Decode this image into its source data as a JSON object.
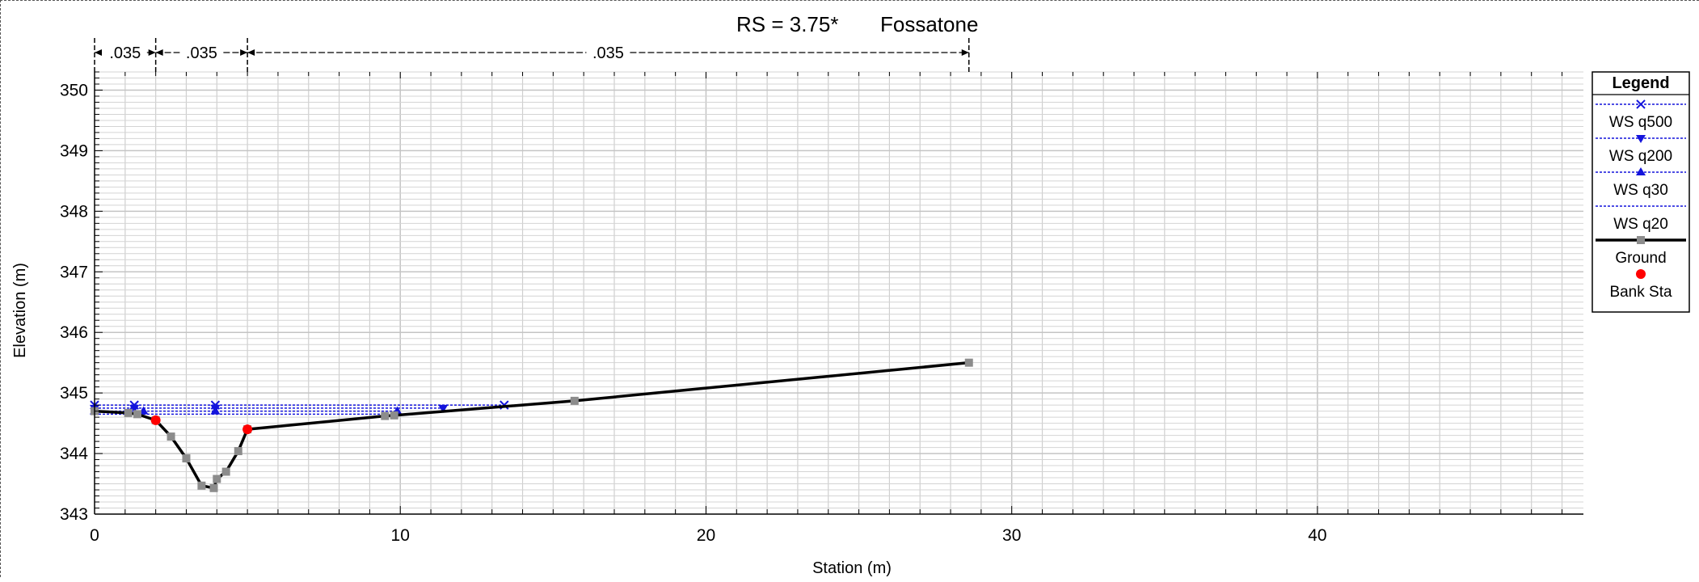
{
  "chart_data": {
    "type": "line",
    "title": "RS = 3.75*",
    "subtitle": "Fossatone",
    "xlabel": "Station (m)",
    "ylabel": "Elevation (m)",
    "xlim": [
      0,
      48.7
    ],
    "ylim": [
      343,
      350.3
    ],
    "xticks": [
      0,
      10,
      20,
      30,
      40
    ],
    "yticks": [
      343,
      344,
      345,
      346,
      347,
      348,
      349,
      350
    ],
    "grid": true,
    "legend_position": "right",
    "manning": {
      "breaks": [
        0,
        2.0,
        5.0,
        28.6
      ],
      "labels": [
        ".035",
        ".035",
        ".035"
      ]
    },
    "legend": {
      "title": "Legend",
      "entries": [
        "WS q500",
        "WS q200",
        "WS q30",
        "WS q20",
        "Ground",
        "Bank Sta"
      ]
    },
    "ground": {
      "name": "Ground",
      "color": "#000000",
      "marker_color": "#8c8c8c",
      "x": [
        0,
        1.1,
        1.4,
        2.0,
        2.5,
        3.0,
        3.5,
        3.9,
        4.0,
        4.3,
        4.7,
        5.0,
        9.5,
        9.8,
        15.7,
        28.6
      ],
      "y": [
        344.7,
        344.67,
        344.65,
        344.55,
        344.28,
        343.92,
        343.47,
        343.43,
        343.58,
        343.7,
        344.04,
        344.4,
        344.62,
        344.63,
        344.87,
        345.5
      ]
    },
    "bank_stations": {
      "name": "Bank Sta",
      "color": "#ff0000",
      "x": [
        2.0,
        5.0
      ],
      "y": [
        344.55,
        344.4
      ]
    },
    "series": [
      {
        "name": "WS q500",
        "color": "#1414dc",
        "marker": "x",
        "x": [
          0,
          1.3,
          3.95,
          13.4
        ],
        "y": [
          344.8,
          344.8,
          344.8,
          344.8
        ]
      },
      {
        "name": "WS q200",
        "color": "#1414dc",
        "marker": "triangle-down",
        "x": [
          0,
          1.3,
          3.95,
          11.4
        ],
        "y": [
          344.75,
          344.75,
          344.75,
          344.75
        ]
      },
      {
        "name": "WS q30",
        "color": "#1414dc",
        "marker": "triangle-up",
        "x": [
          0,
          1.6,
          3.95,
          9.9
        ],
        "y": [
          344.7,
          344.7,
          344.7,
          344.7
        ]
      },
      {
        "name": "WS q20",
        "color": "#1414dc",
        "marker": "none",
        "x": [
          0,
          1.7,
          3.95,
          9.6
        ],
        "y": [
          344.65,
          344.65,
          344.65,
          344.65
        ]
      }
    ]
  }
}
